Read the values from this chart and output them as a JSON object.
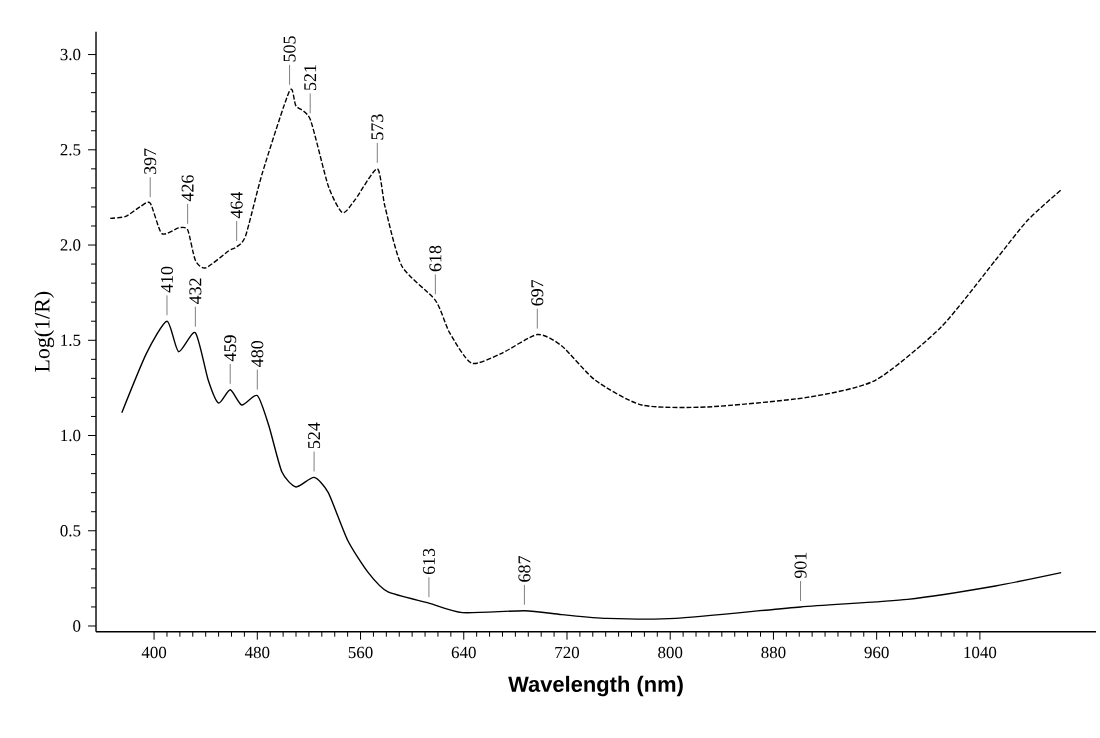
{
  "chart_data": {
    "type": "line",
    "xlabel": "Wavelength (nm)",
    "ylabel": "Log(1/R)",
    "xlim": [
      355,
      1130
    ],
    "ylim": [
      -0.03,
      3.12
    ],
    "xticks": [
      400,
      480,
      560,
      640,
      720,
      800,
      880,
      960,
      1040
    ],
    "yticks": [
      0,
      {
        "value": 0.5,
        "label": "0.5"
      },
      {
        "value": 1,
        "label": "1.0"
      },
      {
        "value": 1.5,
        "label": "1.5"
      },
      {
        "value": 2,
        "label": "2.0"
      },
      {
        "value": 2.5,
        "label": "2.5"
      },
      {
        "value": 3,
        "label": "3.0"
      }
    ],
    "grid": false,
    "marker": "none",
    "series": [
      {
        "color": "#000000",
        "line_style": "dashed",
        "x": [
          366,
          378,
          389,
          397,
          406,
          419,
          426,
          432,
          440,
          458,
          464,
          471,
          484,
          505,
          510,
          521,
          535,
          546,
          556,
          573,
          579,
          592,
          618,
          629,
          646,
          669,
          697,
          716,
          742,
          778,
          829,
          906,
          959,
          1010,
          1052,
          1077,
          1103
        ],
        "values": [
          2.14,
          2.15,
          2.2,
          2.22,
          2.06,
          2.09,
          2.08,
          1.92,
          1.88,
          1.97,
          1.99,
          2.05,
          2.38,
          2.81,
          2.73,
          2.66,
          2.31,
          2.17,
          2.24,
          2.4,
          2.2,
          1.89,
          1.71,
          1.54,
          1.38,
          1.43,
          1.53,
          1.47,
          1.29,
          1.16,
          1.15,
          1.2,
          1.29,
          1.57,
          1.92,
          2.13,
          2.29
        ]
      },
      {
        "color": "#000000",
        "line_style": "solid",
        "x": [
          375,
          394,
          410,
          419,
          432,
          442,
          450,
          459,
          468,
          480,
          489,
          499,
          510,
          524,
          535,
          550,
          566,
          581,
          613,
          639,
          687,
          716,
          751,
          804,
          901,
          984,
          1052,
          1103
        ],
        "values": [
          1.12,
          1.43,
          1.6,
          1.44,
          1.54,
          1.29,
          1.17,
          1.24,
          1.16,
          1.21,
          1.05,
          0.81,
          0.73,
          0.78,
          0.7,
          0.45,
          0.28,
          0.18,
          0.12,
          0.07,
          0.08,
          0.06,
          0.04,
          0.04,
          0.1,
          0.14,
          0.21,
          0.28
        ]
      }
    ],
    "annotations": [
      {
        "text": "397",
        "x": 397,
        "y": 2.22
      },
      {
        "text": "426",
        "x": 426,
        "y": 2.08
      },
      {
        "text": "464",
        "x": 464,
        "y": 1.99
      },
      {
        "text": "505",
        "x": 505,
        "y": 2.81
      },
      {
        "text": "521",
        "x": 521,
        "y": 2.66
      },
      {
        "text": "573",
        "x": 573,
        "y": 2.4
      },
      {
        "text": "618",
        "x": 618,
        "y": 1.71
      },
      {
        "text": "697",
        "x": 697,
        "y": 1.53
      },
      {
        "text": "410",
        "x": 410,
        "y": 1.6
      },
      {
        "text": "432",
        "x": 432,
        "y": 1.54
      },
      {
        "text": "459",
        "x": 459,
        "y": 1.24
      },
      {
        "text": "480",
        "x": 480,
        "y": 1.21
      },
      {
        "text": "524",
        "x": 524,
        "y": 0.78
      },
      {
        "text": "613",
        "x": 613,
        "y": 0.12
      },
      {
        "text": "687",
        "x": 687,
        "y": 0.08
      },
      {
        "text": "901",
        "x": 901,
        "y": 0.1
      }
    ]
  }
}
